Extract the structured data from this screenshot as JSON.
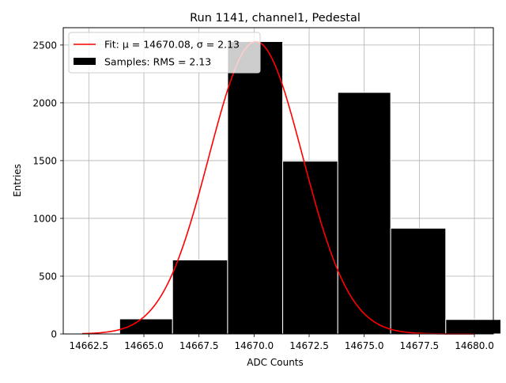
{
  "chart_data": {
    "type": "bar",
    "title": "Run 1141, channel1, Pedestal",
    "xlabel": "ADC Counts",
    "ylabel": "Entries",
    "xlim": [
      14661.34,
      14680.86
    ],
    "ylim": [
      0,
      2650
    ],
    "x_ticks": [
      14662.5,
      14665.0,
      14667.5,
      14670.0,
      14672.5,
      14675.0,
      14677.5,
      14680.0
    ],
    "x_tick_labels": [
      "14662.5",
      "14665.0",
      "14667.5",
      "14670.0",
      "14672.5",
      "14675.0",
      "14677.5",
      "14680.0"
    ],
    "y_ticks": [
      0,
      500,
      1000,
      1500,
      2000,
      2500
    ],
    "y_tick_labels": [
      "0",
      "500",
      "1000",
      "1500",
      "2000",
      "2500"
    ],
    "grid": true,
    "legend_position": "top-left",
    "histogram": {
      "name": "Samples: RMS = 2.13",
      "color": "#000000",
      "edge_color": "#ffffff",
      "bins": [
        {
          "x0": 14663.9,
          "x1": 14666.3,
          "value": 130
        },
        {
          "x0": 14666.3,
          "x1": 14668.8,
          "value": 640
        },
        {
          "x0": 14668.8,
          "x1": 14671.3,
          "value": 2530
        },
        {
          "x0": 14671.3,
          "x1": 14673.8,
          "value": 1495
        },
        {
          "x0": 14673.8,
          "x1": 14676.2,
          "value": 2090
        },
        {
          "x0": 14676.2,
          "x1": 14678.7,
          "value": 915
        },
        {
          "x0": 14678.7,
          "x1": 14681.2,
          "value": 125
        }
      ]
    },
    "fit": {
      "name": "Fit: μ = 14670.08, σ = 2.13",
      "color": "#ff0000",
      "mu": 14670.08,
      "sigma": 2.13,
      "peak": 2530,
      "x_range": [
        14662.2,
        14680.0
      ]
    }
  }
}
